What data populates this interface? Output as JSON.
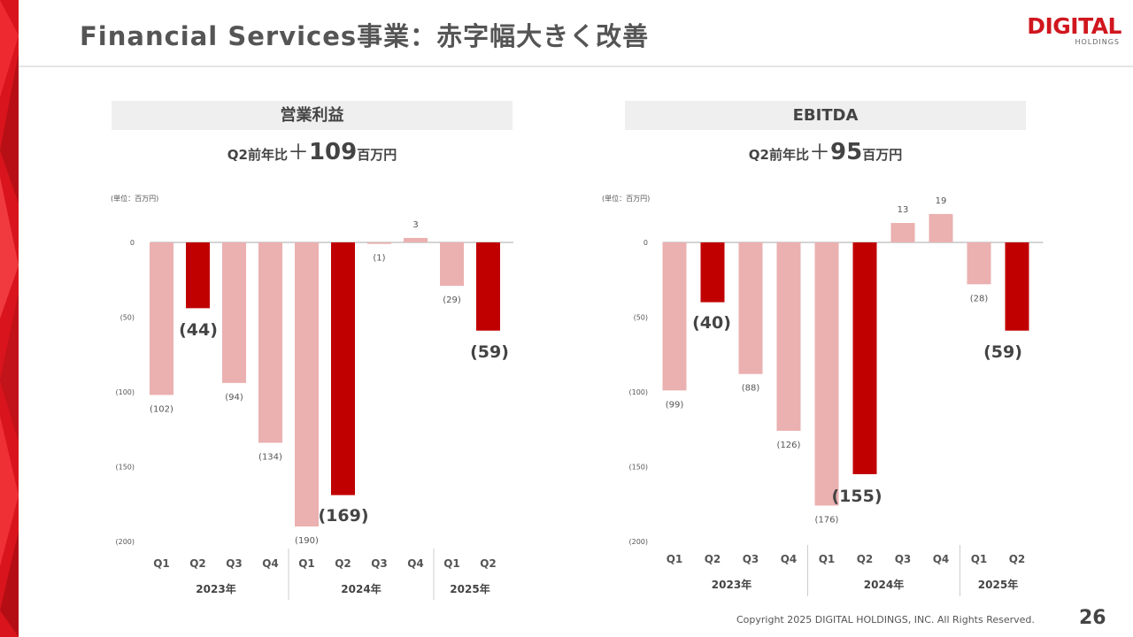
{
  "slide": {
    "title": "Financial Services事業：赤字幅大きく改善",
    "logo_main": "DIGITAL",
    "logo_sub": "HOLDINGS",
    "footer": "Copyright 2025 DIGITAL HOLDINGS, INC. All Rights Reserved.",
    "page_number": "26"
  },
  "colors": {
    "accent_red": "#d0161e",
    "bar_highlight": "#c00000",
    "bar_light": "#ebb0b0",
    "panel_header_bg": "#efefef"
  },
  "panels": [
    {
      "header": "営業利益",
      "sub_prefix": "Q2前年比",
      "sub_sign": "＋",
      "sub_value": "109",
      "sub_suffix": "百万円",
      "unit": "(単位：百万円)"
    },
    {
      "header": "EBITDA",
      "sub_prefix": "Q2前年比",
      "sub_sign": "＋",
      "sub_value": "95",
      "sub_suffix": "百万円",
      "unit": "(単位：百万円)"
    }
  ],
  "chart_data": [
    {
      "type": "bar",
      "title": "営業利益",
      "unit": "百万円",
      "categories": [
        "Q1",
        "Q2",
        "Q3",
        "Q4",
        "Q1",
        "Q2",
        "Q3",
        "Q4",
        "Q1",
        "Q2"
      ],
      "groups": [
        {
          "label": "2023年",
          "count": 4
        },
        {
          "label": "2024年",
          "count": 4
        },
        {
          "label": "2025年",
          "count": 2
        }
      ],
      "values": [
        -102,
        -44,
        -94,
        -134,
        -190,
        -169,
        -1,
        3,
        -29,
        -59
      ],
      "labels": [
        "(102)",
        "(44)",
        "(94)",
        "(134)",
        "(190)",
        "(169)",
        "(1)",
        "3",
        "(29)",
        "(59)"
      ],
      "highlight": [
        false,
        true,
        false,
        false,
        false,
        true,
        false,
        false,
        false,
        true
      ],
      "yticks": [
        0,
        -50,
        -100,
        -150,
        -200
      ],
      "ytick_labels": [
        "0",
        "(50)",
        "(100)",
        "(150)",
        "(200)"
      ],
      "ylim": [
        -200,
        0
      ],
      "grid": false
    },
    {
      "type": "bar",
      "title": "EBITDA",
      "unit": "百万円",
      "categories": [
        "Q1",
        "Q2",
        "Q3",
        "Q4",
        "Q1",
        "Q2",
        "Q3",
        "Q4",
        "Q1",
        "Q2"
      ],
      "groups": [
        {
          "label": "2023年",
          "count": 4
        },
        {
          "label": "2024年",
          "count": 4
        },
        {
          "label": "2025年",
          "count": 2
        }
      ],
      "values": [
        -99,
        -40,
        -88,
        -126,
        -176,
        -155,
        13,
        19,
        -28,
        -59
      ],
      "labels": [
        "(99)",
        "(40)",
        "(88)",
        "(126)",
        "(176)",
        "(155)",
        "13",
        "19",
        "(28)",
        "(59)"
      ],
      "highlight": [
        false,
        true,
        false,
        false,
        false,
        true,
        false,
        false,
        false,
        true
      ],
      "yticks": [
        0,
        -50,
        -100,
        -150,
        -200
      ],
      "ytick_labels": [
        "0",
        "(50)",
        "(100)",
        "(150)",
        "(200)"
      ],
      "ylim": [
        -200,
        0
      ],
      "grid": false
    }
  ]
}
